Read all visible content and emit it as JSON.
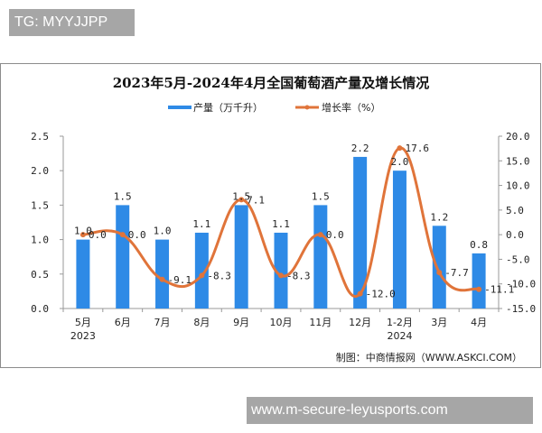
{
  "overlay": {
    "top_badge": "TG: MYYJJPP",
    "bottom_badge": "www.m-secure-leyusports.com"
  },
  "chart": {
    "title": "2023年5月-2024年4月全国葡萄酒产量及增长情况",
    "legend": {
      "bar": "产量（万千升）",
      "line": "增长率（%）"
    },
    "source": "制图：中商情报网（WWW.ASKCI.COM）",
    "colors": {
      "bar": "#2e8ae6",
      "line": "#e0743a"
    }
  },
  "chart_data": {
    "type": "bar",
    "title": "2023年5月-2024年4月全国葡萄酒产量及增长情况",
    "categories": [
      "5月",
      "6月",
      "7月",
      "8月",
      "9月",
      "10月",
      "11月",
      "12月",
      "1-2月",
      "3月",
      "4月"
    ],
    "category_sublabels": {
      "0": "2023",
      "8": "2024"
    },
    "series": [
      {
        "name": "产量（万千升）",
        "type": "bar",
        "axis": "left",
        "values": [
          1.0,
          1.5,
          1.0,
          1.1,
          1.5,
          1.1,
          1.5,
          2.2,
          2.0,
          1.2,
          0.8
        ]
      },
      {
        "name": "增长率（%）",
        "type": "line",
        "axis": "right",
        "values": [
          0.0,
          0.0,
          -9.1,
          -8.3,
          7.1,
          -8.3,
          0.0,
          -12.0,
          17.6,
          -7.7,
          -11.1
        ]
      }
    ],
    "left_axis": {
      "ylim": [
        0.0,
        2.5
      ],
      "ticks": [
        "0.0",
        "0.5",
        "1.0",
        "1.5",
        "2.0",
        "2.5"
      ]
    },
    "right_axis": {
      "ylim": [
        -15.0,
        20.0
      ],
      "ticks": [
        "-15.0",
        "-10.0",
        "-5.0",
        "0.0",
        "5.0",
        "10.0",
        "15.0",
        "20.0"
      ]
    },
    "bar_labels": [
      "1.0",
      "1.5",
      "1.0",
      "1.1",
      "1.5",
      "1.1",
      "1.5",
      "2.2",
      "2.0",
      "1.2",
      "0.8"
    ],
    "line_labels": [
      "0.0",
      "0.0",
      "-9.1",
      "-8.3",
      "7.1",
      "-8.3",
      "0.0",
      "-12.0",
      "17.6",
      "-7.7",
      "-11.1"
    ],
    "xlabel": "",
    "ylabel": "",
    "grid": false,
    "legend_position": "top"
  }
}
